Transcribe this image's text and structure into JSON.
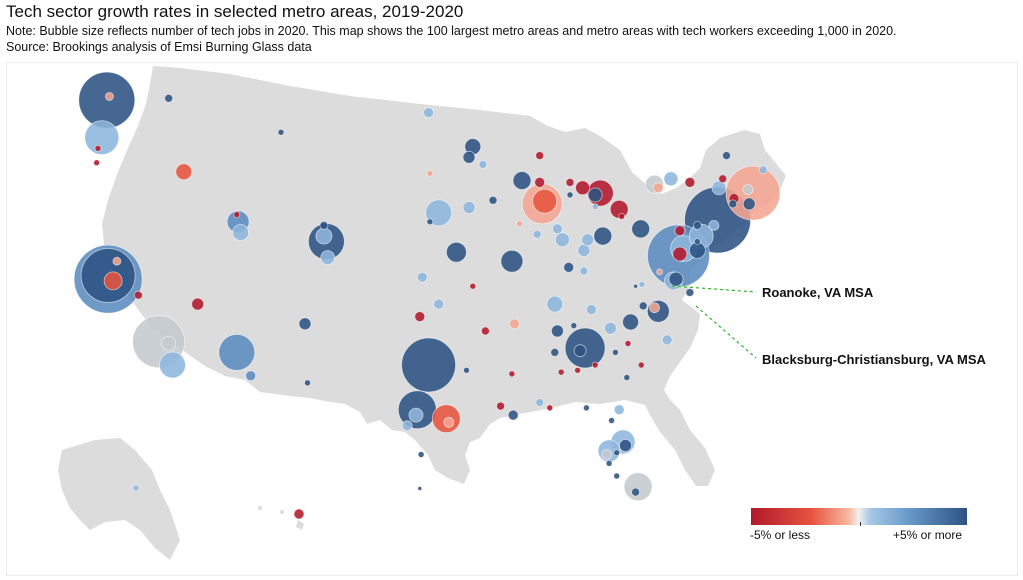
{
  "title": "Tech sector growth rates in selected metro areas, 2019-2020",
  "note": "Note: Bubble size reflects number of tech jobs in 2020. This map shows the 100 largest metro areas and metro areas with tech workers exceeding 1,000 in 2020.",
  "source": "Source: Brookings analysis of Emsi Burning Glass data",
  "callouts": {
    "roanoke": "Roanoke, VA MSA",
    "blacksburg": "Blacksburg-Christiansburg, VA MSA"
  },
  "legend": {
    "low_label": "-5% or less",
    "high_label": "+5% or more"
  },
  "colors": {
    "land": "#dcdcdc",
    "strong_negative": "#b2182b",
    "negative": "#e6543f",
    "light_negative": "#f4a592",
    "neutral": "#c4c9ce",
    "light_positive": "#8db6dc",
    "positive": "#5b8cc0",
    "strong_positive": "#2c5282",
    "leader_line": "#33b233"
  },
  "bubbles": [
    {
      "metro": "Seattle",
      "lon": -122.3,
      "lat": 47.6,
      "r": 28,
      "c": "strong_positive"
    },
    {
      "metro": "Seattle-inner",
      "lon": -122.1,
      "lat": 47.8,
      "r": 4,
      "c": "light_negative"
    },
    {
      "metro": "Portland",
      "lon": -122.7,
      "lat": 45.5,
      "r": 17,
      "c": "light_positive"
    },
    {
      "metro": "Salem",
      "lon": -123.0,
      "lat": 44.9,
      "r": 3,
      "c": "strong_negative"
    },
    {
      "metro": "Eugene",
      "lon": -123.1,
      "lat": 44.1,
      "r": 3,
      "c": "strong_negative"
    },
    {
      "metro": "Spokane",
      "lon": -117.4,
      "lat": 47.7,
      "r": 4,
      "c": "strong_positive"
    },
    {
      "metro": "Boise",
      "lon": -116.2,
      "lat": 43.6,
      "r": 8,
      "c": "negative"
    },
    {
      "metro": "SF-SJ",
      "lon": -122.2,
      "lat": 37.6,
      "r": 34,
      "c": "positive"
    },
    {
      "metro": "SF-inner",
      "lon": -122.2,
      "lat": 37.8,
      "r": 27,
      "c": "strong_positive"
    },
    {
      "metro": "SF-red",
      "lon": -121.8,
      "lat": 37.5,
      "r": 9,
      "c": "negative"
    },
    {
      "metro": "Sacramento",
      "lon": -121.5,
      "lat": 38.6,
      "r": 4,
      "c": "light_negative"
    },
    {
      "metro": "Fresno",
      "lon": -119.8,
      "lat": 36.7,
      "r": 4,
      "c": "strong_negative"
    },
    {
      "metro": "Los Angeles",
      "lon": -118.2,
      "lat": 34.1,
      "r": 26,
      "c": "neutral"
    },
    {
      "metro": "Riverside",
      "lon": -117.4,
      "lat": 34.0,
      "r": 7,
      "c": "neutral"
    },
    {
      "metro": "San Diego",
      "lon": -117.1,
      "lat": 32.8,
      "r": 13,
      "c": "light_positive"
    },
    {
      "metro": "Las Vegas",
      "lon": -115.1,
      "lat": 36.2,
      "r": 6,
      "c": "strong_negative"
    },
    {
      "metro": "Phoenix",
      "lon": -112.0,
      "lat": 33.5,
      "r": 18,
      "c": "positive"
    },
    {
      "metro": "Tucson",
      "lon": -110.9,
      "lat": 32.2,
      "r": 5,
      "c": "positive"
    },
    {
      "metro": "Salt Lake City",
      "lon": -111.9,
      "lat": 40.8,
      "r": 11,
      "c": "positive"
    },
    {
      "metro": "Provo",
      "lon": -111.7,
      "lat": 40.2,
      "r": 8,
      "c": "light_positive"
    },
    {
      "metro": "Ogden",
      "lon": -112.0,
      "lat": 41.2,
      "r": 3,
      "c": "strong_negative"
    },
    {
      "metro": "Billings",
      "lon": -108.5,
      "lat": 45.8,
      "r": 3,
      "c": "strong_positive"
    },
    {
      "metro": "Denver",
      "lon": -104.9,
      "lat": 39.7,
      "r": 18,
      "c": "strong_positive"
    },
    {
      "metro": "Denver-inner",
      "lon": -105.1,
      "lat": 40.0,
      "r": 8,
      "c": "light_positive"
    },
    {
      "metro": "Colorado Springs",
      "lon": -104.8,
      "lat": 38.8,
      "r": 7,
      "c": "light_positive"
    },
    {
      "metro": "Fort Collins",
      "lon": -105.1,
      "lat": 40.6,
      "r": 4,
      "c": "strong_positive"
    },
    {
      "metro": "Albuquerque",
      "lon": -106.6,
      "lat": 35.1,
      "r": 6,
      "c": "strong_positive"
    },
    {
      "metro": "El Paso",
      "lon": -106.4,
      "lat": 31.8,
      "r": 3,
      "c": "strong_positive"
    },
    {
      "metro": "Fargo",
      "lon": -96.8,
      "lat": 46.9,
      "r": 5,
      "c": "light_positive"
    },
    {
      "metro": "Sioux Falls",
      "lon": -96.7,
      "lat": 43.5,
      "r": 3,
      "c": "light_negative"
    },
    {
      "metro": "Omaha",
      "lon": -96.0,
      "lat": 41.3,
      "r": 13,
      "c": "light_positive"
    },
    {
      "metro": "Lincoln",
      "lon": -96.7,
      "lat": 40.8,
      "r": 3,
      "c": "strong_positive"
    },
    {
      "metro": "Kansas City",
      "lon": -94.6,
      "lat": 39.1,
      "r": 10,
      "c": "strong_positive"
    },
    {
      "metro": "Wichita",
      "lon": -97.3,
      "lat": 37.7,
      "r": 5,
      "c": "light_positive"
    },
    {
      "metro": "Oklahoma City",
      "lon": -97.5,
      "lat": 35.5,
      "r": 5,
      "c": "strong_negative"
    },
    {
      "metro": "Tulsa",
      "lon": -96.0,
      "lat": 36.2,
      "r": 5,
      "c": "light_positive"
    },
    {
      "metro": "Dallas",
      "lon": -96.8,
      "lat": 32.8,
      "r": 27,
      "c": "strong_positive"
    },
    {
      "metro": "Austin",
      "lon": -97.7,
      "lat": 30.3,
      "r": 19,
      "c": "strong_positive"
    },
    {
      "metro": "Austin-inner",
      "lon": -97.8,
      "lat": 30.0,
      "r": 7,
      "c": "light_positive"
    },
    {
      "metro": "San Antonio",
      "lon": -98.5,
      "lat": 29.4,
      "r": 5,
      "c": "light_positive"
    },
    {
      "metro": "Houston",
      "lon": -95.4,
      "lat": 29.8,
      "r": 14,
      "c": "negative"
    },
    {
      "metro": "Houston-inner",
      "lon": -95.2,
      "lat": 29.6,
      "r": 5,
      "c": "light_negative"
    },
    {
      "metro": "Corpus Christi",
      "lon": -97.4,
      "lat": 27.8,
      "r": 3,
      "c": "strong_positive"
    },
    {
      "metro": "Brownsville",
      "lon": -97.5,
      "lat": 25.9,
      "r": 2,
      "c": "strong_positive"
    },
    {
      "metro": "Minneapolis",
      "lon": -93.3,
      "lat": 45.0,
      "r": 8,
      "c": "strong_positive"
    },
    {
      "metro": "Minneapolis-2",
      "lon": -93.6,
      "lat": 44.4,
      "r": 6,
      "c": "strong_positive"
    },
    {
      "metro": "Rochester MN",
      "lon": -92.5,
      "lat": 44.0,
      "r": 4,
      "c": "light_positive"
    },
    {
      "metro": "Des Moines",
      "lon": -93.6,
      "lat": 41.6,
      "r": 6,
      "c": "light_positive"
    },
    {
      "metro": "Cedar Rapids",
      "lon": -91.7,
      "lat": 42.0,
      "r": 4,
      "c": "strong_positive"
    },
    {
      "metro": "Madison",
      "lon": -89.4,
      "lat": 43.1,
      "r": 9,
      "c": "strong_positive"
    },
    {
      "metro": "Milwaukee",
      "lon": -88.0,
      "lat": 43.0,
      "r": 5,
      "c": "strong_negative"
    },
    {
      "metro": "Green Bay",
      "lon": -88.0,
      "lat": 44.5,
      "r": 4,
      "c": "strong_negative"
    },
    {
      "metro": "Chicago",
      "lon": -87.8,
      "lat": 41.8,
      "r": 20,
      "c": "light_negative"
    },
    {
      "metro": "Chicago-inner",
      "lon": -87.6,
      "lat": 41.95,
      "r": 12,
      "c": "negative"
    },
    {
      "metro": "St Louis",
      "lon": -90.2,
      "lat": 38.6,
      "r": 11,
      "c": "strong_positive"
    },
    {
      "metro": "Springfield MO",
      "lon": -93.3,
      "lat": 37.2,
      "r": 3,
      "c": "strong_negative"
    },
    {
      "metro": "Peoria",
      "lon": -89.6,
      "lat": 40.7,
      "r": 3,
      "c": "light_negative"
    },
    {
      "metro": "Champaign",
      "lon": -88.2,
      "lat": 40.1,
      "r": 4,
      "c": "light_positive"
    },
    {
      "metro": "Little Rock",
      "lon": -92.3,
      "lat": 34.7,
      "r": 4,
      "c": "strong_negative"
    },
    {
      "metro": "Shreveport",
      "lon": -93.8,
      "lat": 32.5,
      "r": 3,
      "c": "strong_positive"
    },
    {
      "metro": "Jackson MS",
      "lon": -90.2,
      "lat": 32.3,
      "r": 3,
      "c": "strong_negative"
    },
    {
      "metro": "Baton Rouge",
      "lon": -91.1,
      "lat": 30.5,
      "r": 4,
      "c": "strong_negative"
    },
    {
      "metro": "New Orleans",
      "lon": -90.1,
      "lat": 30.0,
      "r": 5,
      "c": "strong_positive"
    },
    {
      "metro": "Memphis",
      "lon": -90.0,
      "lat": 35.1,
      "r": 5,
      "c": "light_negative"
    },
    {
      "metro": "Nashville",
      "lon": -86.8,
      "lat": 36.2,
      "r": 8,
      "c": "light_positive"
    },
    {
      "metro": "Huntsville",
      "lon": -86.6,
      "lat": 34.7,
      "r": 6,
      "c": "strong_positive"
    },
    {
      "metro": "Birmingham",
      "lon": -86.8,
      "lat": 33.5,
      "r": 4,
      "c": "strong_positive"
    },
    {
      "metro": "Mobile",
      "lon": -88.0,
      "lat": 30.7,
      "r": 4,
      "c": "light_positive"
    },
    {
      "metro": "Pensacola",
      "lon": -87.2,
      "lat": 30.4,
      "r": 3,
      "c": "strong_negative"
    },
    {
      "metro": "Tallahassee",
      "lon": -84.3,
      "lat": 30.4,
      "r": 3,
      "c": "strong_positive"
    },
    {
      "metro": "Louisville",
      "lon": -85.7,
      "lat": 38.25,
      "r": 5,
      "c": "strong_positive"
    },
    {
      "metro": "Lexington",
      "lon": -84.5,
      "lat": 38.05,
      "r": 4,
      "c": "light_positive"
    },
    {
      "metro": "Cincinnati",
      "lon": -84.5,
      "lat": 39.2,
      "r": 6,
      "c": "light_positive"
    },
    {
      "metro": "Indianapolis",
      "lon": -86.2,
      "lat": 39.8,
      "r": 7,
      "c": "light_positive"
    },
    {
      "metro": "Indianapolis-2",
      "lon": -86.6,
      "lat": 40.4,
      "r": 5,
      "c": "light_positive"
    },
    {
      "metro": "Columbus",
      "lon": -83.0,
      "lat": 40.0,
      "r": 9,
      "c": "strong_positive"
    },
    {
      "metro": "Dayton",
      "lon": -84.2,
      "lat": 39.8,
      "r": 6,
      "c": "light_positive"
    },
    {
      "metro": "Cleveland",
      "lon": -81.7,
      "lat": 41.5,
      "r": 9,
      "c": "strong_negative"
    },
    {
      "metro": "Akron",
      "lon": -81.5,
      "lat": 41.1,
      "r": 3,
      "c": "strong_negative"
    },
    {
      "metro": "Toledo",
      "lon": -83.6,
      "lat": 41.65,
      "r": 3,
      "c": "light_positive"
    },
    {
      "metro": "Detroit",
      "lon": -83.2,
      "lat": 42.4,
      "r": 13,
      "c": "strong_negative"
    },
    {
      "metro": "Detroit-2",
      "lon": -83.6,
      "lat": 42.3,
      "r": 7,
      "c": "strong_positive"
    },
    {
      "metro": "Lansing",
      "lon": -84.6,
      "lat": 42.7,
      "r": 7,
      "c": "strong_negative"
    },
    {
      "metro": "Grand Rapids",
      "lon": -85.6,
      "lat": 43.0,
      "r": 4,
      "c": "strong_negative"
    },
    {
      "metro": "Kalamazoo",
      "lon": -85.6,
      "lat": 42.3,
      "r": 3,
      "c": "strong_positive"
    },
    {
      "metro": "Pittsburgh",
      "lon": -80.0,
      "lat": 40.4,
      "r": 9,
      "c": "strong_positive"
    },
    {
      "metro": "Buffalo",
      "lon": -78.9,
      "lat": 42.9,
      "r": 9,
      "c": "neutral"
    },
    {
      "metro": "Buffalo-2",
      "lon": -78.6,
      "lat": 42.7,
      "r": 5,
      "c": "light_negative"
    },
    {
      "metro": "Rochester NY",
      "lon": -77.6,
      "lat": 43.2,
      "r": 7,
      "c": "light_positive"
    },
    {
      "metro": "Syracuse",
      "lon": -76.1,
      "lat": 43.0,
      "r": 5,
      "c": "strong_negative"
    },
    {
      "metro": "Albany",
      "lon": -73.8,
      "lat": 42.7,
      "r": 7,
      "c": "light_positive"
    },
    {
      "metro": "Albany-2",
      "lon": -73.5,
      "lat": 43.2,
      "r": 4,
      "c": "strong_negative"
    },
    {
      "metro": "Burlington",
      "lon": -73.2,
      "lat": 44.5,
      "r": 4,
      "c": "strong_positive"
    },
    {
      "metro": "Portland ME",
      "lon": -70.3,
      "lat": 43.7,
      "r": 4,
      "c": "light_positive"
    },
    {
      "metro": "Boston",
      "lon": -71.1,
      "lat": 42.4,
      "r": 27,
      "c": "light_negative"
    },
    {
      "metro": "Boston-2",
      "lon": -71.5,
      "lat": 42.6,
      "r": 5,
      "c": "neutral"
    },
    {
      "metro": "Hartford",
      "lon": -72.7,
      "lat": 41.8,
      "r": 4,
      "c": "strong_positive"
    },
    {
      "metro": "Springfield MA",
      "lon": -72.6,
      "lat": 42.1,
      "r": 5,
      "c": "strong_negative"
    },
    {
      "metro": "Providence",
      "lon": -71.4,
      "lat": 41.8,
      "r": 6,
      "c": "strong_positive"
    },
    {
      "metro": "New York",
      "lon": -73.9,
      "lat": 40.9,
      "r": 33,
      "c": "strong_positive"
    },
    {
      "metro": "New York-2",
      "lon": -74.2,
      "lat": 40.6,
      "r": 5,
      "c": "light_positive"
    },
    {
      "metro": "Allentown",
      "lon": -75.5,
      "lat": 40.6,
      "r": 4,
      "c": "strong_positive"
    },
    {
      "metro": "Harrisburg",
      "lon": -76.9,
      "lat": 40.3,
      "r": 5,
      "c": "strong_negative"
    },
    {
      "metro": "Philadelphia",
      "lon": -75.2,
      "lat": 40.0,
      "r": 12,
      "c": "light_positive"
    },
    {
      "metro": "Washington DC",
      "lon": -77.0,
      "lat": 38.9,
      "r": 31,
      "c": "positive"
    },
    {
      "metro": "Baltimore",
      "lon": -76.6,
      "lat": 39.3,
      "r": 13,
      "c": "light_positive"
    },
    {
      "metro": "Baltimore-2",
      "lon": -76.9,
      "lat": 39.0,
      "r": 7,
      "c": "strong_negative"
    },
    {
      "metro": "Wilmington",
      "lon": -75.5,
      "lat": 39.7,
      "r": 3,
      "c": "strong_positive"
    },
    {
      "metro": "Dover",
      "lon": -75.5,
      "lat": 39.2,
      "r": 8,
      "c": "strong_positive"
    },
    {
      "metro": "Richmond",
      "lon": -77.4,
      "lat": 37.5,
      "r": 9,
      "c": "light_positive"
    },
    {
      "metro": "Richmond-2",
      "lon": -77.2,
      "lat": 37.6,
      "r": 7,
      "c": "strong_positive"
    },
    {
      "metro": "Charlottesville",
      "lon": -78.5,
      "lat": 38.0,
      "r": 3,
      "c": "light_negative"
    },
    {
      "metro": "Roanoke",
      "lon": -79.9,
      "lat": 37.3,
      "r": 3,
      "c": "light_positive"
    },
    {
      "metro": "Blacksburg",
      "lon": -80.4,
      "lat": 37.2,
      "r": 2,
      "c": "strong_positive"
    },
    {
      "metro": "Virginia Beach",
      "lon": -76.1,
      "lat": 36.85,
      "r": 4,
      "c": "strong_positive"
    },
    {
      "metro": "Raleigh",
      "lon": -78.6,
      "lat": 35.8,
      "r": 11,
      "c": "strong_positive"
    },
    {
      "metro": "Durham",
      "lon": -78.9,
      "lat": 36.0,
      "r": 5,
      "c": "light_negative"
    },
    {
      "metro": "Greensboro",
      "lon": -79.8,
      "lat": 36.1,
      "r": 4,
      "c": "strong_positive"
    },
    {
      "metro": "Charlotte",
      "lon": -80.8,
      "lat": 35.2,
      "r": 8,
      "c": "strong_positive"
    },
    {
      "metro": "Wilmington NC",
      "lon": -77.9,
      "lat": 34.2,
      "r": 5,
      "c": "light_positive"
    },
    {
      "metro": "Knoxville",
      "lon": -83.9,
      "lat": 35.9,
      "r": 5,
      "c": "light_positive"
    },
    {
      "metro": "Chattanooga",
      "lon": -85.3,
      "lat": 35.0,
      "r": 3,
      "c": "strong_positive"
    },
    {
      "metro": "Atlanta",
      "lon": -84.4,
      "lat": 33.75,
      "r": 20,
      "c": "strong_positive"
    },
    {
      "metro": "Atlanta-2",
      "lon": -84.8,
      "lat": 33.6,
      "r": 6,
      "c": "strong_positive"
    },
    {
      "metro": "Greenville",
      "lon": -82.4,
      "lat": 34.85,
      "r": 6,
      "c": "light_positive"
    },
    {
      "metro": "Columbia SC",
      "lon": -81.0,
      "lat": 34.0,
      "r": 3,
      "c": "strong_negative"
    },
    {
      "metro": "Charleston",
      "lon": -79.95,
      "lat": 32.8,
      "r": 3,
      "c": "strong_negative"
    },
    {
      "metro": "Augusta",
      "lon": -82.0,
      "lat": 33.5,
      "r": 3,
      "c": "strong_positive"
    },
    {
      "metro": "Savannah",
      "lon": -81.1,
      "lat": 32.1,
      "r": 3,
      "c": "strong_positive"
    },
    {
      "metro": "Macon",
      "lon": -83.6,
      "lat": 32.8,
      "r": 3,
      "c": "strong_negative"
    },
    {
      "metro": "Columbus GA",
      "lon": -85.0,
      "lat": 32.5,
      "r": 3,
      "c": "strong_negative"
    },
    {
      "metro": "Montgomery",
      "lon": -86.3,
      "lat": 32.4,
      "r": 3,
      "c": "strong_negative"
    },
    {
      "metro": "Jacksonville",
      "lon": -81.7,
      "lat": 30.3,
      "r": 5,
      "c": "light_positive"
    },
    {
      "metro": "Gainesville",
      "lon": -82.3,
      "lat": 29.7,
      "r": 3,
      "c": "strong_positive"
    },
    {
      "metro": "Orlando",
      "lon": -81.4,
      "lat": 28.5,
      "r": 12,
      "c": "light_positive"
    },
    {
      "metro": "Orlando-2",
      "lon": -81.2,
      "lat": 28.3,
      "r": 6,
      "c": "strong_positive"
    },
    {
      "metro": "Tampa",
      "lon": -82.5,
      "lat": 28.0,
      "r": 11,
      "c": "light_positive"
    },
    {
      "metro": "Tampa-2",
      "lon": -82.7,
      "lat": 27.8,
      "r": 5,
      "c": "neutral"
    },
    {
      "metro": "Lakeland",
      "lon": -81.9,
      "lat": 27.9,
      "r": 3,
      "c": "strong_positive"
    },
    {
      "metro": "Sarasota",
      "lon": -82.5,
      "lat": 27.3,
      "r": 3,
      "c": "strong_positive"
    },
    {
      "metro": "Cape Coral",
      "lon": -81.9,
      "lat": 26.6,
      "r": 3,
      "c": "strong_positive"
    },
    {
      "metro": "Miami",
      "lon": -80.2,
      "lat": 26.0,
      "r": 14,
      "c": "neutral"
    },
    {
      "metro": "Miami-2",
      "lon": -80.4,
      "lat": 25.7,
      "r": 4,
      "c": "strong_positive"
    },
    {
      "metro": "Alaska",
      "lon": -149.9,
      "lat": 61.2,
      "r": 3,
      "c": "light_positive",
      "region": "alaska"
    },
    {
      "metro": "Honolulu",
      "lon": -157.9,
      "lat": 21.3,
      "r": 5,
      "c": "strong_negative",
      "region": "hawaii"
    }
  ]
}
